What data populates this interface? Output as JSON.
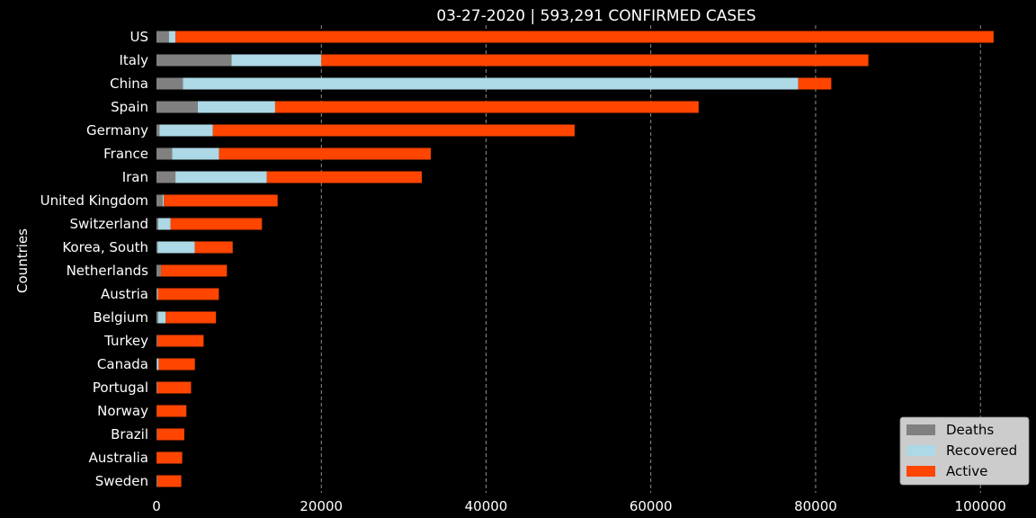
{
  "chart_data": {
    "type": "bar",
    "orientation": "horizontal",
    "stacked": true,
    "title": "03-27-2020 | 593,291 CONFIRMED CASES",
    "ylabel": "Countries",
    "xlabel": "",
    "xlim": [
      0,
      105000
    ],
    "xticks": [
      0,
      20000,
      40000,
      60000,
      80000,
      100000
    ],
    "xtick_labels": [
      "0",
      "20000",
      "40000",
      "60000",
      "80000",
      "100000"
    ],
    "grid": "x-dashed",
    "legend_position": "bottom-right",
    "categories": [
      "US",
      "Italy",
      "China",
      "Spain",
      "Germany",
      "France",
      "Iran",
      "United Kingdom",
      "Switzerland",
      "Korea, South",
      "Netherlands",
      "Austria",
      "Belgium",
      "Turkey",
      "Canada",
      "Portugal",
      "Norway",
      "Brazil",
      "Australia",
      "Sweden"
    ],
    "series": [
      {
        "name": "Deaths",
        "color": "#808080",
        "values": [
          1500,
          9100,
          3200,
          5000,
          350,
          1900,
          2300,
          760,
          200,
          150,
          550,
          70,
          220,
          90,
          60,
          60,
          20,
          80,
          20,
          100
        ]
      },
      {
        "name": "Recovered",
        "color": "#add8e6",
        "values": [
          800,
          10900,
          74700,
          9400,
          6500,
          5700,
          11100,
          140,
          1500,
          4500,
          0,
          100,
          900,
          30,
          200,
          40,
          10,
          0,
          0,
          10
        ]
      },
      {
        "name": "Active",
        "color": "#ff4500",
        "values": [
          99300,
          66400,
          4000,
          51400,
          43900,
          25700,
          18800,
          13800,
          11100,
          4600,
          8000,
          7400,
          6100,
          5600,
          4400,
          4100,
          3600,
          3300,
          3100,
          2900
        ]
      }
    ]
  }
}
